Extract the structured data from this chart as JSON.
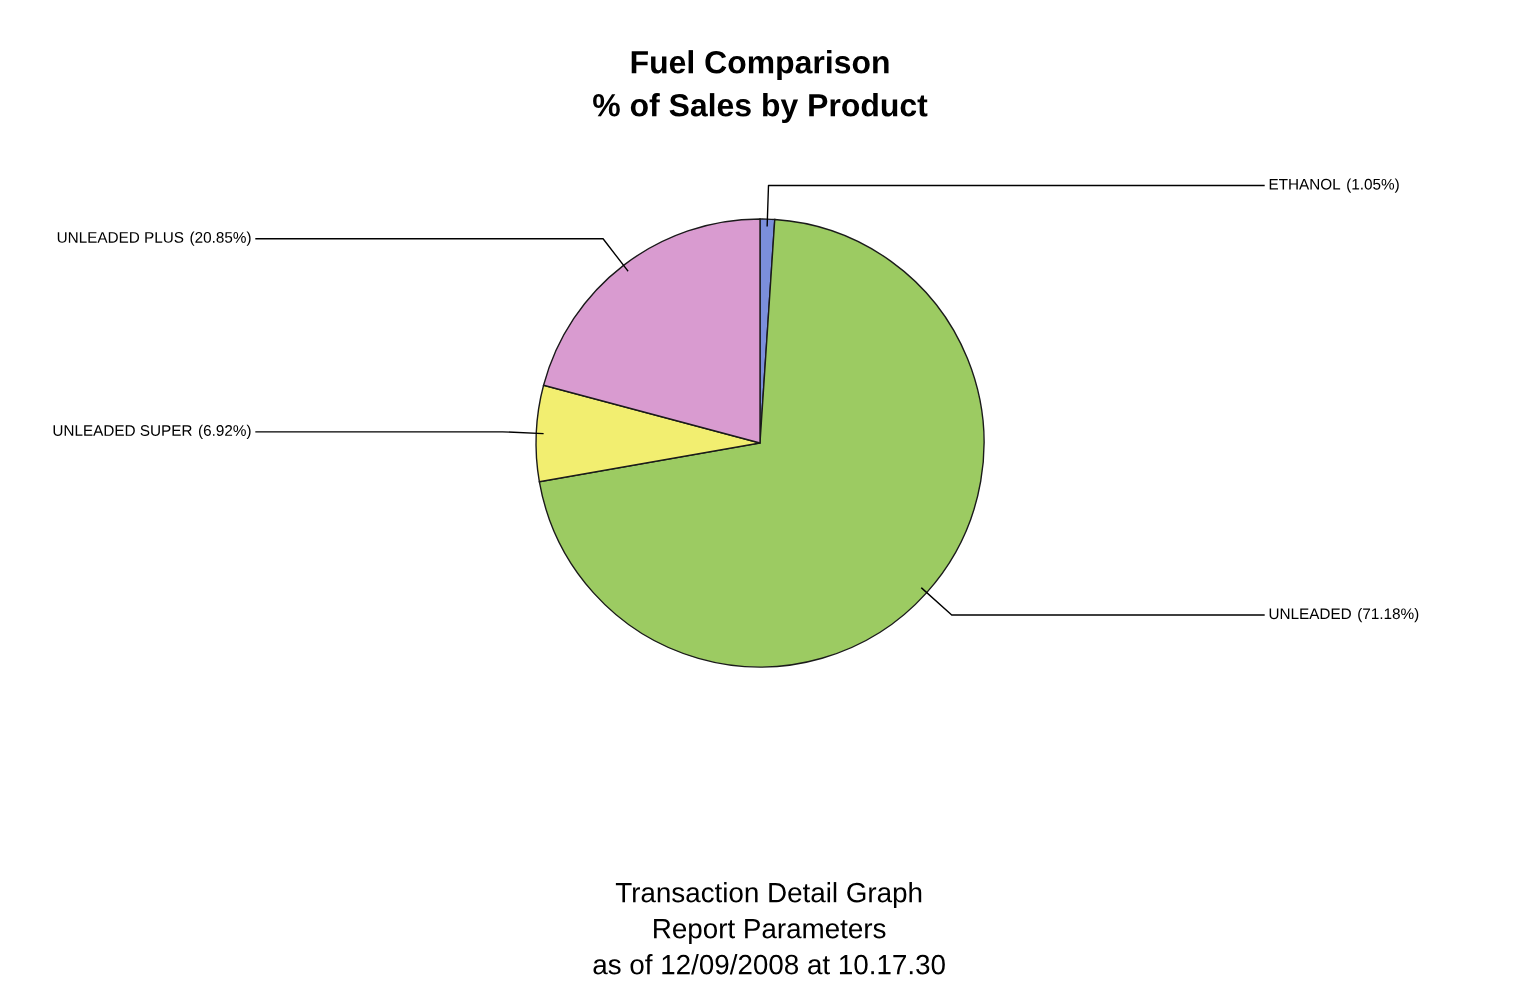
{
  "chart_data": {
    "type": "pie",
    "title": "Fuel Comparison",
    "subtitle": "% of Sales by Product",
    "categories": [
      "ETHANOL",
      "UNLEADED",
      "UNLEADED SUPER",
      "UNLEADED PLUS"
    ],
    "values": [
      1.05,
      71.18,
      6.92,
      20.85
    ],
    "colors": [
      "#7b8fdc",
      "#9ccb62",
      "#f2ee70",
      "#d99bd0"
    ],
    "value_labels": [
      "(1.05%)",
      "(71.18%)",
      "(6.92%)",
      "(20.85%)"
    ],
    "legend": false,
    "annotations": [
      "Transaction Detail Graph",
      "Report Parameters",
      "as of 12/09/2008 at 10.17.30"
    ]
  }
}
